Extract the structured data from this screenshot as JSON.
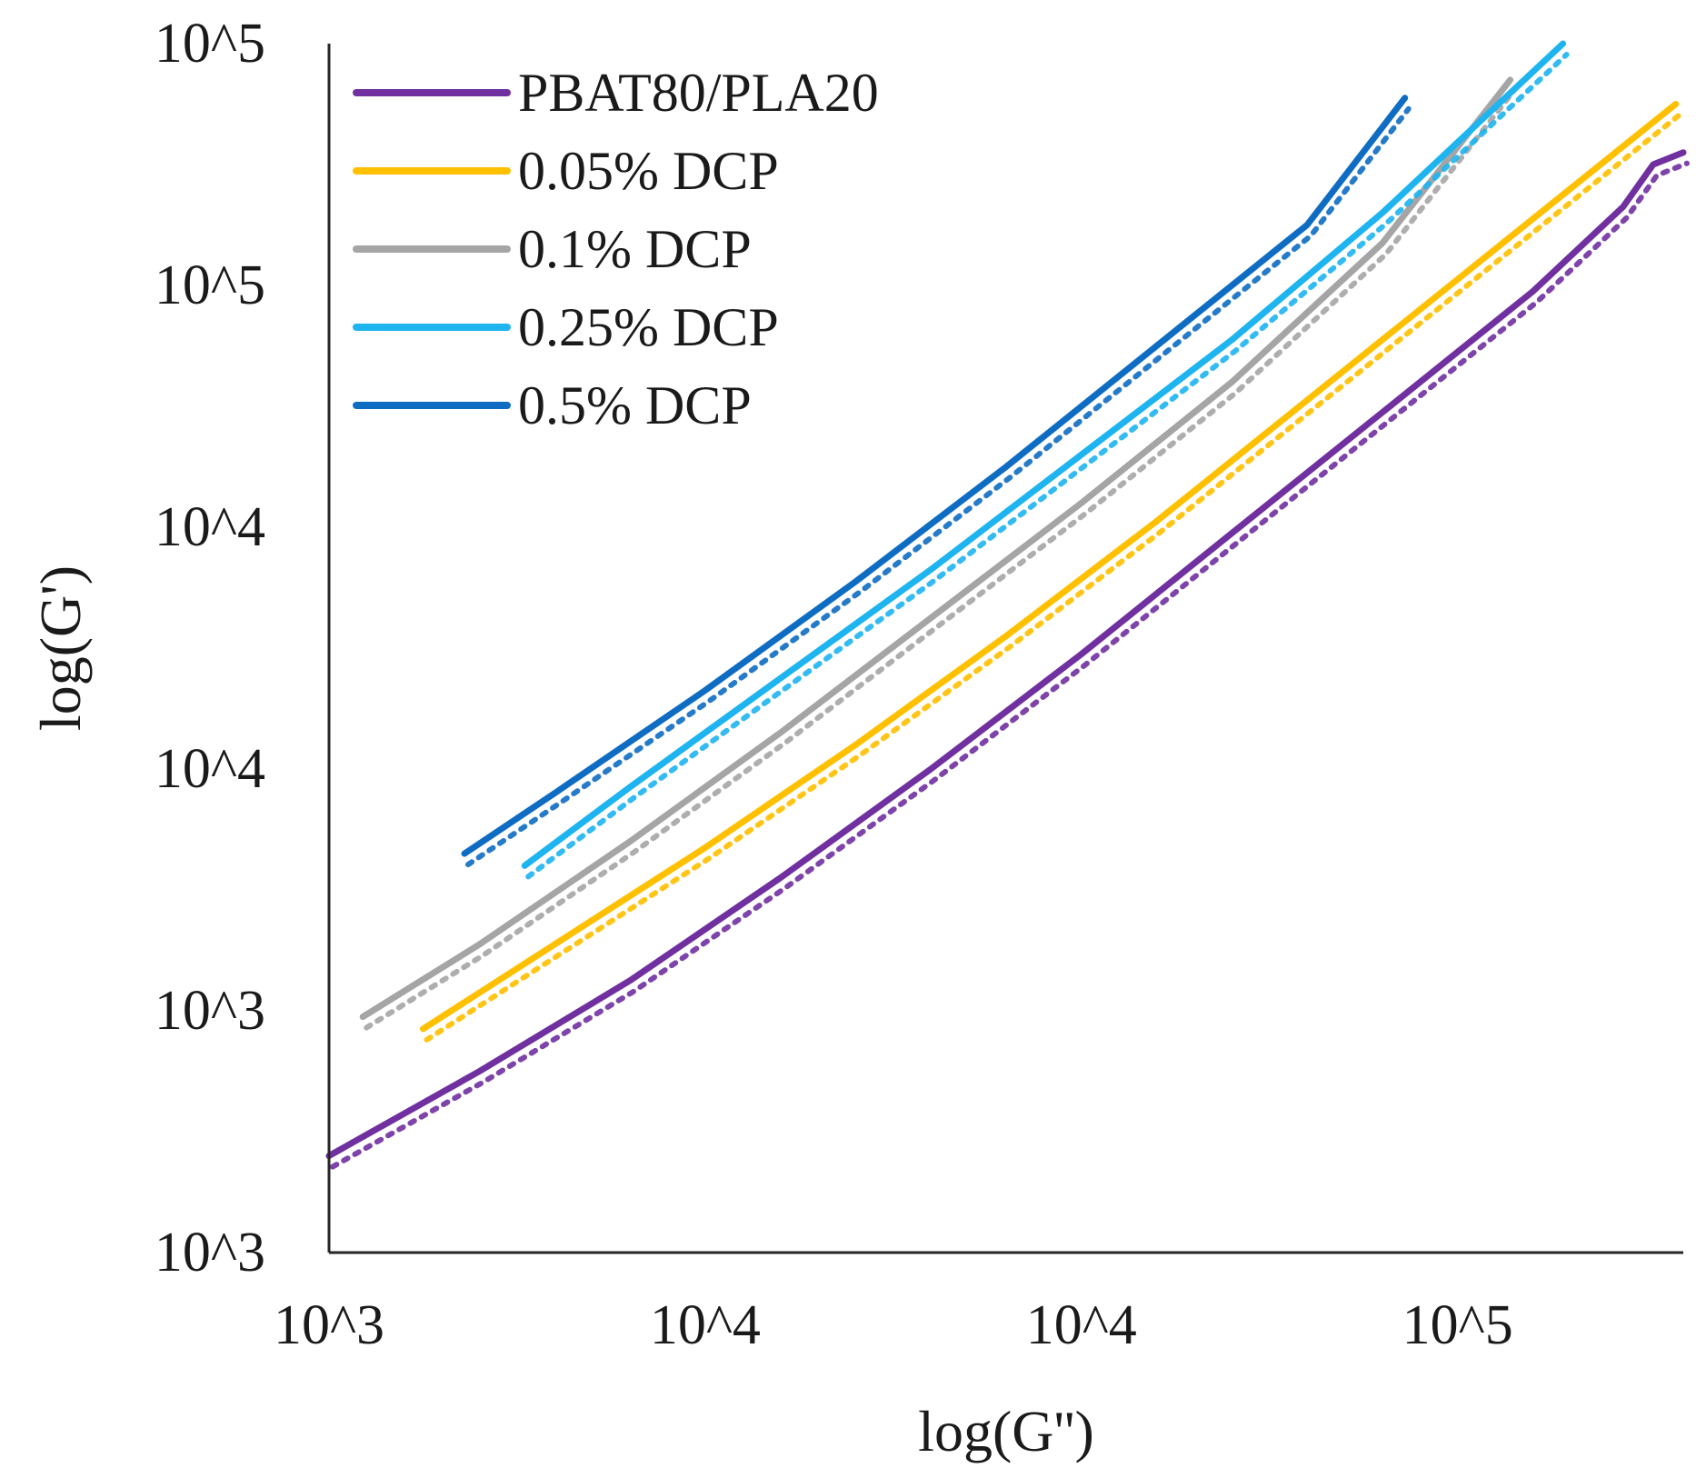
{
  "chart_data": {
    "type": "line",
    "xlabel": "log(G'')",
    "ylabel": "log(G')",
    "x_scale": "log",
    "y_scale": "log",
    "xlim_log10": [
      3.0,
      4.8
    ],
    "ylim_log10": [
      3.0,
      5.0
    ],
    "x_ticks": [
      {
        "value_log10": 3.0,
        "label": "10^3"
      },
      {
        "value_log10": 3.5,
        "label": "10^4"
      },
      {
        "value_log10": 4.0,
        "label": "10^4"
      },
      {
        "value_log10": 4.5,
        "label": "10^5"
      }
    ],
    "y_ticks": [
      {
        "value_log10": 3.0,
        "label": "10^3"
      },
      {
        "value_log10": 3.4,
        "label": "10^3"
      },
      {
        "value_log10": 3.8,
        "label": "10^4"
      },
      {
        "value_log10": 4.2,
        "label": "10^4"
      },
      {
        "value_log10": 4.6,
        "label": "10^5"
      },
      {
        "value_log10": 5.0,
        "label": "10^5"
      }
    ],
    "legend_position": "top-left",
    "series": [
      {
        "name": "PBAT80/PLA20",
        "color": "#7030A0",
        "x_log10": [
          3.0,
          3.2,
          3.4,
          3.6,
          3.8,
          4.0,
          4.2,
          4.4,
          4.6,
          4.72,
          4.76,
          4.8
        ],
        "y_log10": [
          3.16,
          3.3,
          3.45,
          3.62,
          3.8,
          3.99,
          4.19,
          4.39,
          4.59,
          4.73,
          4.8,
          4.82
        ]
      },
      {
        "name": "0.05% DCP",
        "color": "#FFC000",
        "x_log10": [
          3.125,
          3.3,
          3.5,
          3.7,
          3.9,
          4.1,
          4.3,
          4.5,
          4.65,
          4.79
        ],
        "y_log10": [
          3.37,
          3.51,
          3.67,
          3.84,
          4.02,
          4.21,
          4.41,
          4.61,
          4.76,
          4.9
        ]
      },
      {
        "name": "0.1% DCP",
        "color": "#A5A5A5",
        "x_log10": [
          3.045,
          3.2,
          3.4,
          3.6,
          3.8,
          4.0,
          4.2,
          4.4,
          4.57
        ],
        "y_log10": [
          3.39,
          3.51,
          3.68,
          3.86,
          4.05,
          4.24,
          4.44,
          4.67,
          4.94
        ]
      },
      {
        "name": "0.25% DCP",
        "color": "#1EB4F0",
        "x_log10": [
          3.26,
          3.4,
          3.6,
          3.8,
          4.0,
          4.2,
          4.4,
          4.64
        ],
        "y_log10": [
          3.64,
          3.77,
          3.95,
          4.13,
          4.32,
          4.51,
          4.72,
          5.0
        ]
      },
      {
        "name": "0.5% DCP",
        "color": "#0E6DC2",
        "x_log10": [
          3.18,
          3.3,
          3.5,
          3.7,
          3.9,
          4.1,
          4.3,
          4.43
        ],
        "y_log10": [
          3.66,
          3.76,
          3.93,
          4.11,
          4.3,
          4.5,
          4.7,
          4.91
        ]
      }
    ]
  }
}
